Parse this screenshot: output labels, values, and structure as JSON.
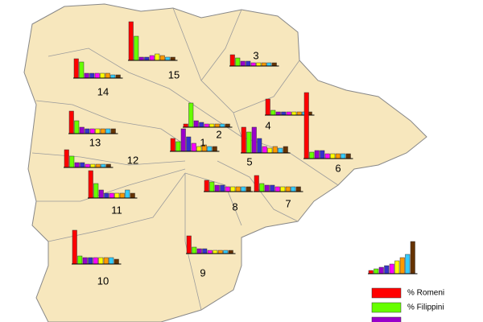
{
  "bar_colors": [
    "#ff0000",
    "#66ff00",
    "#9900cc",
    "#3333cc",
    "#ff00ff",
    "#ffff00",
    "#ff9900",
    "#33ccff",
    "#663300"
  ],
  "districts": [
    {
      "label": "1",
      "bars": [
        16,
        12,
        28,
        18,
        10,
        6,
        8,
        6,
        6
      ]
    },
    {
      "label": "2",
      "bars": [
        4,
        30,
        8,
        6,
        4,
        4,
        4,
        4,
        4
      ]
    },
    {
      "label": "3",
      "bars": [
        14,
        10,
        6,
        6,
        4,
        4,
        4,
        4,
        4
      ]
    },
    {
      "label": "4",
      "bars": [
        20,
        6,
        4,
        4,
        4,
        4,
        4,
        4,
        4
      ]
    },
    {
      "label": "5",
      "bars": [
        32,
        26,
        32,
        18,
        8,
        6,
        8,
        6,
        8
      ]
    },
    {
      "label": "6",
      "bars": [
        82,
        8,
        10,
        10,
        6,
        6,
        6,
        6,
        6
      ]
    },
    {
      "label": "7",
      "bars": [
        20,
        10,
        8,
        8,
        6,
        6,
        6,
        6,
        6
      ]
    },
    {
      "label": "8",
      "bars": [
        14,
        12,
        8,
        8,
        6,
        6,
        6,
        6,
        6
      ]
    },
    {
      "label": "9",
      "bars": [
        22,
        8,
        6,
        6,
        4,
        4,
        4,
        4,
        4
      ]
    },
    {
      "label": "10",
      "bars": [
        42,
        10,
        8,
        8,
        8,
        8,
        8,
        8,
        6
      ]
    },
    {
      "label": "11",
      "bars": [
        34,
        18,
        10,
        6,
        6,
        6,
        6,
        10,
        6
      ]
    },
    {
      "label": "12",
      "bars": [
        22,
        14,
        6,
        6,
        4,
        4,
        4,
        4,
        4
      ]
    },
    {
      "label": "13",
      "bars": [
        28,
        16,
        8,
        6,
        6,
        6,
        6,
        6,
        6
      ]
    },
    {
      "label": "14",
      "bars": [
        24,
        20,
        6,
        6,
        6,
        6,
        6,
        4,
        4
      ]
    },
    {
      "label": "15",
      "bars": [
        48,
        30,
        4,
        4,
        6,
        8,
        6,
        4,
        4
      ]
    }
  ],
  "legend_chart": {
    "bars": [
      4,
      6,
      8,
      10,
      12,
      16,
      20,
      24,
      40
    ]
  },
  "legend": [
    {
      "label": "% Romeni",
      "color": "#ff0000"
    },
    {
      "label": "% Filippini",
      "color": "#66ff00"
    },
    {
      "color": "#9900cc"
    }
  ]
}
